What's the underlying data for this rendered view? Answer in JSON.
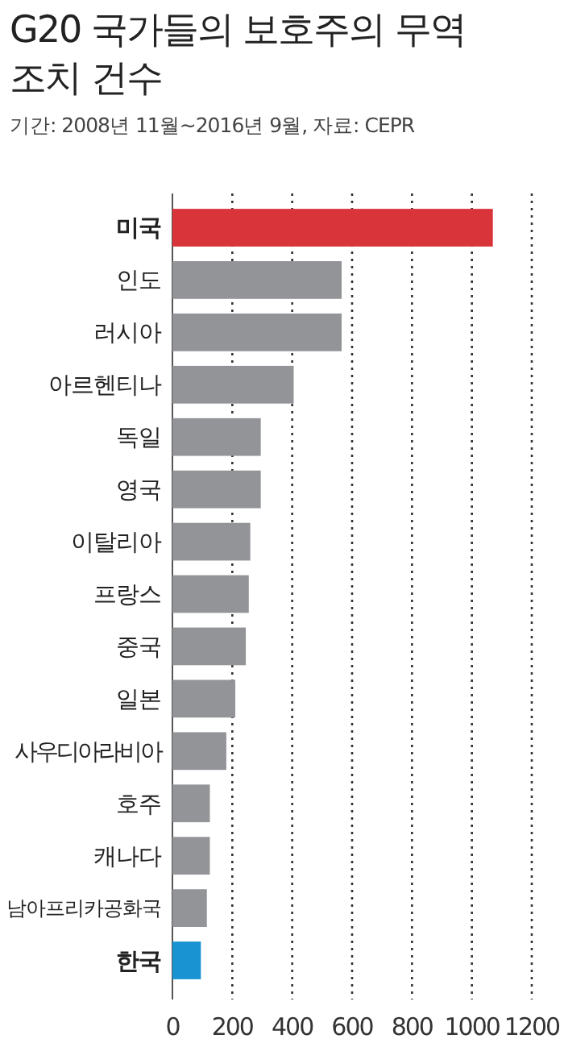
{
  "chart_data": {
    "type": "bar",
    "orientation": "horizontal",
    "title": "G20 국가들의 보호주의 무역 조치 건수",
    "subtitle": "기간: 2008년 11월~2016년 9월, 자료: CEPR",
    "categories": [
      "미국",
      "인도",
      "러시아",
      "아르헨티나",
      "독일",
      "영국",
      "이탈리아",
      "프랑스",
      "중국",
      "일본",
      "사우디아라비아",
      "호주",
      "캐나다",
      "남아프리카공화국",
      "한국"
    ],
    "values": [
      1070,
      565,
      565,
      405,
      295,
      295,
      260,
      255,
      245,
      210,
      180,
      125,
      125,
      115,
      95
    ],
    "colors": [
      "#d9343a",
      "#929497",
      "#929497",
      "#929497",
      "#929497",
      "#929497",
      "#929497",
      "#929497",
      "#929497",
      "#929497",
      "#929497",
      "#929497",
      "#929497",
      "#929497",
      "#1a93d2"
    ],
    "xlim": [
      0,
      1200
    ],
    "xticks": [
      0,
      200,
      400,
      600,
      800,
      1000,
      1200
    ],
    "grid": "x"
  }
}
